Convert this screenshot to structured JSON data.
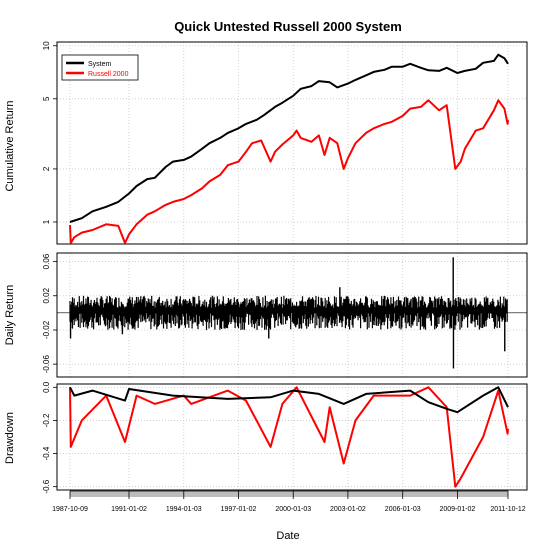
{
  "chart_data": {
    "title": "Quick Untested Russell 2000 System",
    "xlabel": "Date",
    "x_ticks": [
      "1987-10-09",
      "1991-01-02",
      "1994-01-03",
      "1997-01-02",
      "2000-01-03",
      "2003-01-02",
      "2006-01-03",
      "2009-01-02",
      "2011-10-12"
    ],
    "x_range": [
      "1987-10-09",
      "2011-10-12"
    ],
    "colors": {
      "System": "#000000",
      "Russell 2000": "#ff0000"
    },
    "panels": [
      {
        "type": "line",
        "ylabel": "Cumulative Return",
        "scale": "log",
        "ylim": [
          0.75,
          10.5
        ],
        "yticks": [
          "1",
          "2",
          "5",
          "10"
        ],
        "ytick_values": [
          1,
          2,
          5,
          10
        ],
        "legend": {
          "position": "top-left",
          "entries": [
            "System",
            "Russell 2000"
          ]
        },
        "series": [
          {
            "name": "System",
            "points": [
              [
                "1987-10-09",
                1.0
              ],
              [
                "1988-06-01",
                1.05
              ],
              [
                "1989-01-02",
                1.15
              ],
              [
                "1989-10-02",
                1.22
              ],
              [
                "1990-06-01",
                1.3
              ],
              [
                "1991-01-02",
                1.45
              ],
              [
                "1991-06-03",
                1.6
              ],
              [
                "1992-01-02",
                1.75
              ],
              [
                "1992-06-01",
                1.78
              ],
              [
                "1993-01-04",
                2.05
              ],
              [
                "1993-06-01",
                2.2
              ],
              [
                "1994-01-03",
                2.25
              ],
              [
                "1994-06-01",
                2.35
              ],
              [
                "1995-01-03",
                2.6
              ],
              [
                "1995-06-01",
                2.8
              ],
              [
                "1996-01-02",
                3.0
              ],
              [
                "1996-06-03",
                3.2
              ],
              [
                "1997-01-02",
                3.4
              ],
              [
                "1997-06-02",
                3.6
              ],
              [
                "1998-01-02",
                3.8
              ],
              [
                "1998-06-01",
                4.05
              ],
              [
                "1999-01-04",
                4.5
              ],
              [
                "1999-06-01",
                4.75
              ],
              [
                "2000-01-03",
                5.2
              ],
              [
                "2000-06-01",
                5.7
              ],
              [
                "2001-01-02",
                5.9
              ],
              [
                "2001-06-01",
                6.3
              ],
              [
                "2002-01-02",
                6.2
              ],
              [
                "2002-06-03",
                5.8
              ],
              [
                "2003-01-02",
                6.1
              ],
              [
                "2003-06-02",
                6.4
              ],
              [
                "2004-01-02",
                6.8
              ],
              [
                "2004-06-01",
                7.1
              ],
              [
                "2005-01-03",
                7.3
              ],
              [
                "2005-06-01",
                7.6
              ],
              [
                "2006-01-03",
                7.6
              ],
              [
                "2006-06-01",
                7.9
              ],
              [
                "2007-01-03",
                7.5
              ],
              [
                "2007-06-01",
                7.25
              ],
              [
                "2008-01-02",
                7.2
              ],
              [
                "2008-06-02",
                7.5
              ],
              [
                "2009-01-02",
                7.0
              ],
              [
                "2009-06-01",
                7.2
              ],
              [
                "2010-01-04",
                7.4
              ],
              [
                "2010-06-01",
                8.0
              ],
              [
                "2011-01-03",
                8.2
              ],
              [
                "2011-04-01",
                8.9
              ],
              [
                "2011-08-01",
                8.5
              ],
              [
                "2011-10-12",
                7.9
              ]
            ]
          },
          {
            "name": "Russell 2000",
            "points": [
              [
                "1987-10-09",
                0.96
              ],
              [
                "1987-10-26",
                0.75
              ],
              [
                "1988-01-04",
                0.82
              ],
              [
                "1988-06-01",
                0.87
              ],
              [
                "1989-01-02",
                0.9
              ],
              [
                "1989-10-02",
                0.97
              ],
              [
                "1990-06-01",
                0.95
              ],
              [
                "1990-10-15",
                0.76
              ],
              [
                "1991-01-02",
                0.85
              ],
              [
                "1991-06-03",
                0.97
              ],
              [
                "1992-01-02",
                1.1
              ],
              [
                "1992-06-01",
                1.15
              ],
              [
                "1993-01-04",
                1.25
              ],
              [
                "1993-06-01",
                1.3
              ],
              [
                "1994-01-03",
                1.35
              ],
              [
                "1994-06-01",
                1.42
              ],
              [
                "1995-01-03",
                1.55
              ],
              [
                "1995-06-01",
                1.7
              ],
              [
                "1996-01-02",
                1.85
              ],
              [
                "1996-06-03",
                2.1
              ],
              [
                "1997-01-02",
                2.2
              ],
              [
                "1997-06-02",
                2.5
              ],
              [
                "1997-10-01",
                2.8
              ],
              [
                "1998-04-01",
                2.9
              ],
              [
                "1998-10-08",
                2.2
              ],
              [
                "1999-01-04",
                2.5
              ],
              [
                "1999-06-01",
                2.75
              ],
              [
                "2000-01-03",
                3.1
              ],
              [
                "2000-03-10",
                3.3
              ],
              [
                "2000-06-01",
                3.0
              ],
              [
                "2001-01-02",
                2.85
              ],
              [
                "2001-06-01",
                3.1
              ],
              [
                "2001-09-21",
                2.4
              ],
              [
                "2002-01-02",
                3.0
              ],
              [
                "2002-06-03",
                2.8
              ],
              [
                "2002-10-09",
                2.0
              ],
              [
                "2003-01-02",
                2.3
              ],
              [
                "2003-06-02",
                2.8
              ],
              [
                "2004-01-02",
                3.2
              ],
              [
                "2004-06-01",
                3.4
              ],
              [
                "2005-01-03",
                3.6
              ],
              [
                "2005-06-01",
                3.7
              ],
              [
                "2006-01-03",
                4.0
              ],
              [
                "2006-06-01",
                4.4
              ],
              [
                "2007-01-03",
                4.5
              ],
              [
                "2007-06-01",
                4.9
              ],
              [
                "2008-01-02",
                4.3
              ],
              [
                "2008-06-02",
                4.6
              ],
              [
                "2008-11-20",
                2.0
              ],
              [
                "2009-03-09",
                2.2
              ],
              [
                "2009-06-01",
                2.6
              ],
              [
                "2010-01-04",
                3.3
              ],
              [
                "2010-06-01",
                3.4
              ],
              [
                "2011-01-03",
                4.3
              ],
              [
                "2011-04-01",
                4.9
              ],
              [
                "2011-08-01",
                4.4
              ],
              [
                "2011-10-03",
                3.6
              ],
              [
                "2011-10-12",
                3.8
              ]
            ]
          }
        ]
      },
      {
        "type": "line",
        "ylabel": "Daily Return",
        "ylim": [
          -0.075,
          0.07
        ],
        "yticks": [
          "-0.06",
          "-0.02",
          "0.02",
          "0.06"
        ],
        "ytick_values": [
          -0.06,
          -0.02,
          0.02,
          0.06
        ],
        "series": [
          {
            "name": "System",
            "typical_range": [
              -0.02,
              0.02
            ],
            "extremes": [
              [
                "2008-10-10",
                0.065
              ],
              [
                "2008-10-15",
                -0.065
              ],
              [
                "1987-10-20",
                -0.03
              ],
              [
                "1990-08-23",
                -0.025
              ],
              [
                "1998-08-31",
                -0.03
              ],
              [
                "2002-07-24",
                0.03
              ],
              [
                "2011-08-08",
                -0.045
              ]
            ]
          }
        ]
      },
      {
        "type": "line",
        "ylabel": "Drawdown",
        "ylim": [
          -0.62,
          0.02
        ],
        "yticks": [
          "-0.6",
          "-0.4",
          "-0.2",
          "0.0"
        ],
        "ytick_values": [
          -0.6,
          -0.4,
          -0.2,
          0.0
        ],
        "series": [
          {
            "name": "System",
            "points": [
              [
                "1987-10-09",
                0.0
              ],
              [
                "1988-01-04",
                -0.05
              ],
              [
                "1989-01-02",
                -0.02
              ],
              [
                "1990-10-15",
                -0.08
              ],
              [
                "1991-01-02",
                -0.01
              ],
              [
                "1993-06-01",
                -0.05
              ],
              [
                "1996-06-03",
                -0.07
              ],
              [
                "1998-10-08",
                -0.06
              ],
              [
                "2000-01-03",
                -0.02
              ],
              [
                "2001-06-01",
                -0.04
              ],
              [
                "2002-10-09",
                -0.1
              ],
              [
                "2004-01-02",
                -0.04
              ],
              [
                "2006-06-01",
                -0.02
              ],
              [
                "2007-06-01",
                -0.09
              ],
              [
                "2008-06-02",
                -0.13
              ],
              [
                "2009-01-02",
                -0.15
              ],
              [
                "2010-06-01",
                -0.05
              ],
              [
                "2011-04-01",
                0.0
              ],
              [
                "2011-10-12",
                -0.12
              ]
            ]
          },
          {
            "name": "Russell 2000",
            "points": [
              [
                "1987-10-09",
                0.0
              ],
              [
                "1987-10-26",
                -0.36
              ],
              [
                "1988-06-01",
                -0.2
              ],
              [
                "1989-10-02",
                -0.05
              ],
              [
                "1990-10-15",
                -0.33
              ],
              [
                "1991-06-03",
                -0.05
              ],
              [
                "1992-06-01",
                -0.1
              ],
              [
                "1994-01-03",
                -0.05
              ],
              [
                "1994-06-01",
                -0.1
              ],
              [
                "1996-06-03",
                -0.02
              ],
              [
                "1997-06-02",
                -0.08
              ],
              [
                "1998-10-08",
                -0.36
              ],
              [
                "1999-06-01",
                -0.1
              ],
              [
                "2000-03-10",
                0.0
              ],
              [
                "2001-09-21",
                -0.33
              ],
              [
                "2002-01-02",
                -0.12
              ],
              [
                "2002-10-09",
                -0.46
              ],
              [
                "2003-06-02",
                -0.2
              ],
              [
                "2004-06-01",
                -0.05
              ],
              [
                "2006-06-01",
                -0.05
              ],
              [
                "2007-06-01",
                0.0
              ],
              [
                "2008-06-02",
                -0.12
              ],
              [
                "2008-11-20",
                -0.6
              ],
              [
                "2009-03-09",
                -0.55
              ],
              [
                "2010-06-01",
                -0.3
              ],
              [
                "2011-04-01",
                -0.02
              ],
              [
                "2011-10-03",
                -0.28
              ],
              [
                "2011-10-12",
                -0.25
              ]
            ]
          }
        ]
      }
    ]
  }
}
